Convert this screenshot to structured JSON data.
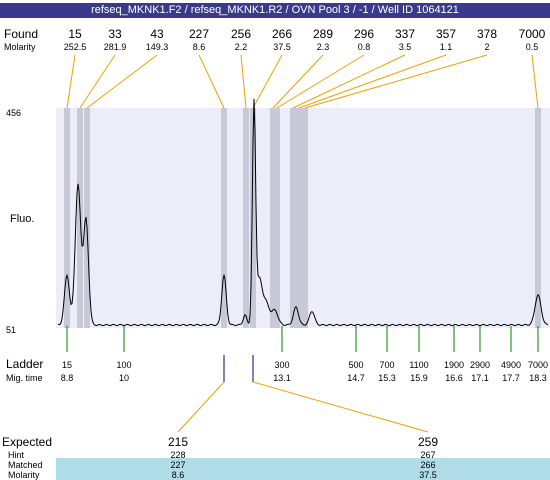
{
  "title": "refseq_MKNK1.F2 / refseq_MKNK1.R2 / OVN Pool 3 / -1 / Well ID 1064121",
  "labels": {
    "found": "Found",
    "molarity": "Molarity",
    "fluo": "Fluo.",
    "ladder": "Ladder",
    "mig_time": "Mig. time",
    "expected": "Expected",
    "hint": "Hint",
    "matched": "Matched",
    "molarity_bottom": "Molarity"
  },
  "colors": {
    "title_bg": "#3a3a8c",
    "plot_bg": "#ededfa",
    "band": "#c8c8d8",
    "found_line": "#f0a000",
    "ladder_line": "#008000",
    "matched_bg": "#b0dce8",
    "trace": "#000000"
  },
  "chart_data": {
    "type": "line",
    "y_axis": {
      "top_label": "456",
      "bottom_label": "51"
    },
    "found_peaks": [
      {
        "size": "15",
        "molarity": "252.5"
      },
      {
        "size": "33",
        "molarity": "281.9"
      },
      {
        "size": "43",
        "molarity": "149.3"
      },
      {
        "size": "227",
        "molarity": "8.6"
      },
      {
        "size": "256",
        "molarity": "2.2"
      },
      {
        "size": "266",
        "molarity": "37.5"
      },
      {
        "size": "289",
        "molarity": "2.3"
      },
      {
        "size": "296",
        "molarity": "0.8"
      },
      {
        "size": "337",
        "molarity": "3.5"
      },
      {
        "size": "357",
        "molarity": "1.1"
      },
      {
        "size": "378",
        "molarity": "2"
      },
      {
        "size": "7000",
        "molarity": "0.5"
      }
    ],
    "ladder": [
      {
        "size": "15",
        "time": "8.8"
      },
      {
        "size": "100",
        "time": "10"
      },
      {
        "size": "300",
        "time": "13.1"
      },
      {
        "size": "500",
        "time": "14.7"
      },
      {
        "size": "700",
        "time": "15.3"
      },
      {
        "size": "1100",
        "time": "15.9"
      },
      {
        "size": "1900",
        "time": "16.6"
      },
      {
        "size": "2900",
        "time": "17.1"
      },
      {
        "size": "4900",
        "time": "17.7"
      },
      {
        "size": "7000",
        "time": "18.3"
      }
    ],
    "expected": [
      {
        "expected": "215",
        "hint": "228",
        "matched": "227",
        "molarity": "8.6"
      },
      {
        "expected": "259",
        "hint": "267",
        "matched": "266",
        "molarity": "37.5"
      }
    ]
  }
}
